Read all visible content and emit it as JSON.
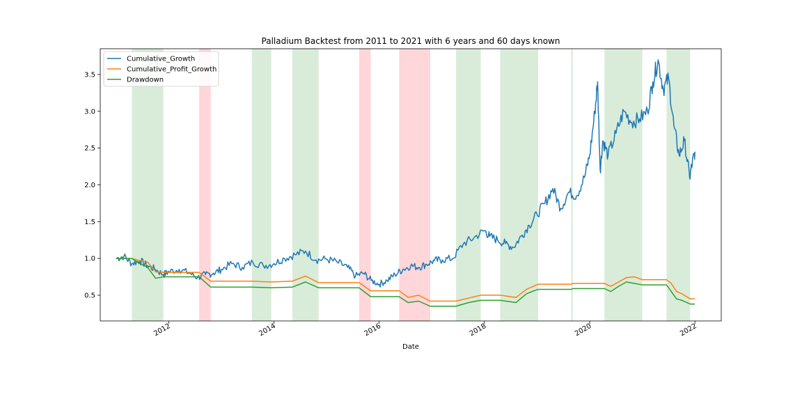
{
  "chart_data": {
    "type": "line",
    "title": "Palladium Backtest from 2011 to 2021 with 6 years and 60 days known",
    "xlabel": "Date",
    "ylabel": "",
    "xlim": [
      2010.7,
      2022.5
    ],
    "ylim": [
      0.15,
      3.85
    ],
    "x_ticks": [
      {
        "value": 2012,
        "label": "2012"
      },
      {
        "value": 2014,
        "label": "2014"
      },
      {
        "value": 2016,
        "label": "2016"
      },
      {
        "value": 2018,
        "label": "2018"
      },
      {
        "value": 2020,
        "label": "2020"
      },
      {
        "value": 2022,
        "label": "2022"
      }
    ],
    "y_ticks": [
      {
        "value": 0.5,
        "label": "0.5"
      },
      {
        "value": 1.0,
        "label": "1.0"
      },
      {
        "value": 1.5,
        "label": "1.5"
      },
      {
        "value": 2.0,
        "label": "2.0"
      },
      {
        "value": 2.5,
        "label": "2.5"
      },
      {
        "value": 3.0,
        "label": "3.0"
      },
      {
        "value": 3.5,
        "label": "3.5"
      }
    ],
    "grid": false,
    "legend_position": "top-left",
    "shaded_regions": [
      {
        "start": 2011.3,
        "end": 2011.9,
        "color": "#d9ecd9"
      },
      {
        "start": 2012.58,
        "end": 2012.8,
        "color": "#ffd6d9"
      },
      {
        "start": 2013.58,
        "end": 2013.95,
        "color": "#d9ecd9"
      },
      {
        "start": 2014.35,
        "end": 2014.85,
        "color": "#d9ecd9"
      },
      {
        "start": 2015.62,
        "end": 2015.84,
        "color": "#ffd6d9"
      },
      {
        "start": 2016.38,
        "end": 2016.97,
        "color": "#ffd6d9"
      },
      {
        "start": 2017.46,
        "end": 2017.93,
        "color": "#d9ecd9"
      },
      {
        "start": 2018.3,
        "end": 2019.02,
        "color": "#d9ecd9"
      },
      {
        "start": 2019.65,
        "end": 2019.68,
        "color": "#d9ecd9"
      },
      {
        "start": 2020.28,
        "end": 2021.0,
        "color": "#d9ecd9"
      },
      {
        "start": 2021.46,
        "end": 2021.91,
        "color": "#d9ecd9"
      }
    ],
    "series": [
      {
        "name": "Cumulative_Growth",
        "color": "#1f77b4",
        "x": [
          2011.0,
          2011.15,
          2011.3,
          2011.45,
          2011.6,
          2011.75,
          2011.9,
          2012.0,
          2012.2,
          2012.4,
          2012.55,
          2012.7,
          2012.85,
          2013.0,
          2013.2,
          2013.4,
          2013.6,
          2013.8,
          2014.0,
          2014.2,
          2014.4,
          2014.6,
          2014.8,
          2015.0,
          2015.2,
          2015.4,
          2015.55,
          2015.7,
          2015.85,
          2016.0,
          2016.15,
          2016.3,
          2016.45,
          2016.6,
          2016.75,
          2016.9,
          2017.05,
          2017.2,
          2017.4,
          2017.6,
          2017.8,
          2018.0,
          2018.1,
          2018.25,
          2018.4,
          2018.55,
          2018.7,
          2018.85,
          2019.0,
          2019.15,
          2019.3,
          2019.45,
          2019.6,
          2019.75,
          2019.9,
          2020.0,
          2020.1,
          2020.15,
          2020.2,
          2020.25,
          2020.35,
          2020.5,
          2020.65,
          2020.8,
          2020.95,
          2021.1,
          2021.2,
          2021.3,
          2021.4,
          2021.5,
          2021.6,
          2021.7,
          2021.8,
          2021.9,
          2021.95,
          2022.0
        ],
        "values": [
          1.0,
          1.03,
          0.93,
          0.97,
          0.9,
          0.85,
          0.78,
          0.82,
          0.85,
          0.8,
          0.74,
          0.78,
          0.8,
          0.85,
          0.93,
          0.88,
          0.95,
          0.9,
          0.93,
          1.0,
          1.05,
          1.1,
          0.98,
          0.99,
          0.95,
          0.88,
          0.76,
          0.8,
          0.7,
          0.65,
          0.7,
          0.78,
          0.85,
          0.9,
          0.88,
          0.92,
          0.97,
          0.98,
          1.0,
          1.2,
          1.28,
          1.38,
          1.3,
          1.25,
          1.2,
          1.15,
          1.3,
          1.45,
          1.6,
          1.75,
          1.95,
          1.68,
          1.9,
          1.85,
          2.1,
          2.4,
          3.0,
          3.4,
          2.2,
          2.6,
          2.4,
          2.7,
          3.0,
          2.85,
          2.9,
          3.0,
          3.4,
          3.7,
          3.3,
          3.45,
          2.8,
          2.4,
          2.6,
          2.1,
          2.3,
          2.45
        ]
      },
      {
        "name": "Cumulative_Profit_Growth",
        "color": "#ff7f0e",
        "x": [
          2011.0,
          2011.3,
          2011.45,
          2011.6,
          2011.75,
          2011.9,
          2012.58,
          2012.8,
          2013.58,
          2013.95,
          2014.35,
          2014.6,
          2014.85,
          2015.62,
          2015.84,
          2016.38,
          2016.55,
          2016.75,
          2016.97,
          2017.46,
          2017.7,
          2017.93,
          2018.3,
          2018.6,
          2018.8,
          2019.02,
          2019.65,
          2019.68,
          2020.28,
          2020.4,
          2020.55,
          2020.7,
          2020.85,
          2021.0,
          2021.46,
          2021.55,
          2021.65,
          2021.75,
          2021.91,
          2022.0
        ],
        "values": [
          1.0,
          1.0,
          0.97,
          0.95,
          0.82,
          0.81,
          0.81,
          0.69,
          0.69,
          0.68,
          0.69,
          0.76,
          0.67,
          0.67,
          0.56,
          0.56,
          0.47,
          0.5,
          0.42,
          0.42,
          0.46,
          0.5,
          0.5,
          0.47,
          0.58,
          0.65,
          0.65,
          0.66,
          0.66,
          0.62,
          0.68,
          0.74,
          0.75,
          0.71,
          0.71,
          0.66,
          0.55,
          0.52,
          0.45,
          0.45
        ]
      },
      {
        "name": "Drawdown",
        "color": "#2ca02c",
        "x": [
          2011.0,
          2011.3,
          2011.45,
          2011.6,
          2011.75,
          2011.9,
          2012.58,
          2012.8,
          2013.58,
          2013.95,
          2014.35,
          2014.6,
          2014.85,
          2015.62,
          2015.84,
          2016.38,
          2016.55,
          2016.75,
          2016.97,
          2017.46,
          2017.7,
          2017.93,
          2018.3,
          2018.6,
          2018.8,
          2019.02,
          2019.65,
          2019.68,
          2020.28,
          2020.4,
          2020.55,
          2020.7,
          2020.85,
          2021.0,
          2021.46,
          2021.55,
          2021.65,
          2021.75,
          2021.91,
          2022.0
        ],
        "values": [
          1.0,
          1.0,
          0.93,
          0.88,
          0.73,
          0.75,
          0.75,
          0.61,
          0.61,
          0.6,
          0.61,
          0.68,
          0.6,
          0.6,
          0.48,
          0.48,
          0.4,
          0.42,
          0.35,
          0.35,
          0.4,
          0.43,
          0.43,
          0.4,
          0.52,
          0.58,
          0.58,
          0.59,
          0.59,
          0.55,
          0.62,
          0.68,
          0.66,
          0.64,
          0.64,
          0.55,
          0.45,
          0.43,
          0.38,
          0.38
        ]
      }
    ]
  }
}
